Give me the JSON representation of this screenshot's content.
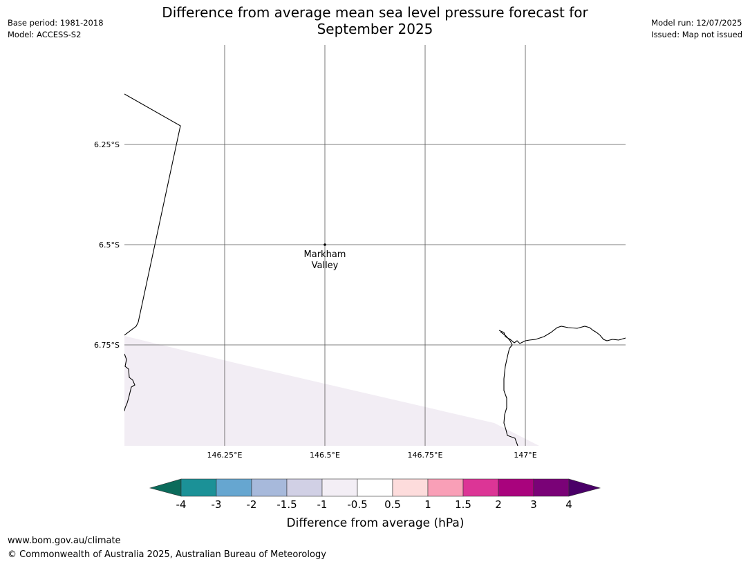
{
  "header": {
    "title_line1": "Difference from average mean sea level pressure forecast for",
    "title_line2": "September 2025",
    "base_period": "Base period: 1981-2018",
    "model": "Model: ACCESS-S2",
    "model_run": "Model run: 12/07/2025",
    "issued": "Issued: Map not issued"
  },
  "map": {
    "lat_ticks": [
      "6.25°S",
      "6.5°S",
      "6.75°S"
    ],
    "lon_ticks": [
      "146.25°E",
      "146.5°E",
      "146.75°E",
      "147°E"
    ],
    "place": {
      "line1": "Markham",
      "line2": "Valley"
    },
    "shaded_fill_color": "#f2edf4",
    "coast_color": "#000000",
    "grid_color": "#555555"
  },
  "colorbar": {
    "label": "Difference from average (hPa)",
    "tick_labels": [
      "-4",
      "-3",
      "-2",
      "-1.5",
      "-1",
      "-0.5",
      "0.5",
      "1",
      "1.5",
      "2",
      "3",
      "4"
    ],
    "low_extend_color": "#0b6b5b",
    "high_extend_color": "#4a0068",
    "colors": [
      "#1b9197",
      "#66a6d0",
      "#a7b9db",
      "#d1d0e5",
      "#f3eef5",
      "#ffffff",
      "#fddcdc",
      "#f99fb7",
      "#dc3596",
      "#a9037d",
      "#7a0277"
    ]
  },
  "footer": {
    "url": "www.bom.gov.au/climate",
    "copyright": "© Commonwealth of Australia 2025, Australian Bureau of Meteorology"
  }
}
